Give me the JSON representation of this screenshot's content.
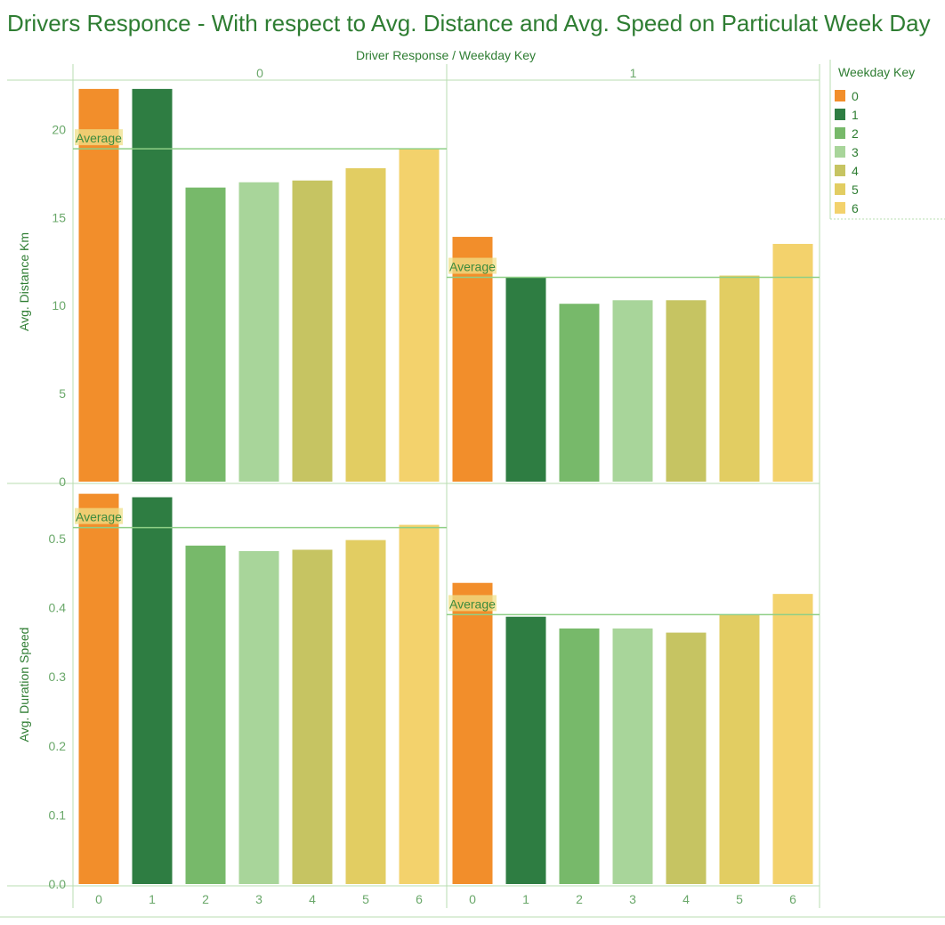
{
  "title": "Drivers Responce - With respect to Avg. Distance and Avg. Speed on Particulat Week Day",
  "colors": {
    "title": "#2e7d32",
    "grid_line": "#b8deb0",
    "avg_line": "#8fcf86",
    "avg_label_bg": "#efe08a",
    "weekday": [
      "#f28e2b",
      "#2e7d42",
      "#77b96a",
      "#a8d59a",
      "#c6c462",
      "#e2cd62",
      "#f3d26c"
    ]
  },
  "chart_data": {
    "type": "bar",
    "header_label": "Driver Response / Weekday Key",
    "column_groups": [
      "0",
      "1"
    ],
    "categories": [
      "0",
      "1",
      "2",
      "3",
      "4",
      "5",
      "6"
    ],
    "legend": {
      "title": "Weekday Key",
      "position": "top-right",
      "entries": [
        "0",
        "1",
        "2",
        "3",
        "4",
        "5",
        "6"
      ]
    },
    "reference_line_label": "Average",
    "panels": [
      {
        "ylabel": "Avg. Distance Km",
        "ylim": [
          0,
          22.8
        ],
        "yticks": [
          "0",
          "5",
          "10",
          "15",
          "20"
        ],
        "ytick_values": [
          0,
          5,
          10,
          15,
          20
        ],
        "groups": [
          {
            "group": "0",
            "values": [
              22.3,
              22.3,
              16.7,
              17.0,
              17.1,
              17.8,
              18.9
            ],
            "average": 18.9
          },
          {
            "group": "1",
            "values": [
              13.9,
              11.6,
              10.1,
              10.3,
              10.3,
              11.7,
              13.5
            ],
            "average": 11.6
          }
        ]
      },
      {
        "ylabel": "Avg. Duration Speed",
        "ylim": [
          0,
          0.58
        ],
        "yticks": [
          "0.0",
          "0.1",
          "0.2",
          "0.3",
          "0.4",
          "0.5"
        ],
        "ytick_values": [
          0,
          0.1,
          0.2,
          0.3,
          0.4,
          0.5
        ],
        "groups": [
          {
            "group": "0",
            "values": [
              0.565,
              0.56,
              0.49,
              0.482,
              0.484,
              0.498,
              0.52
            ],
            "average": 0.516
          },
          {
            "group": "1",
            "values": [
              0.436,
              0.387,
              0.37,
              0.37,
              0.364,
              0.39,
              0.42
            ],
            "average": 0.39
          }
        ]
      }
    ]
  }
}
